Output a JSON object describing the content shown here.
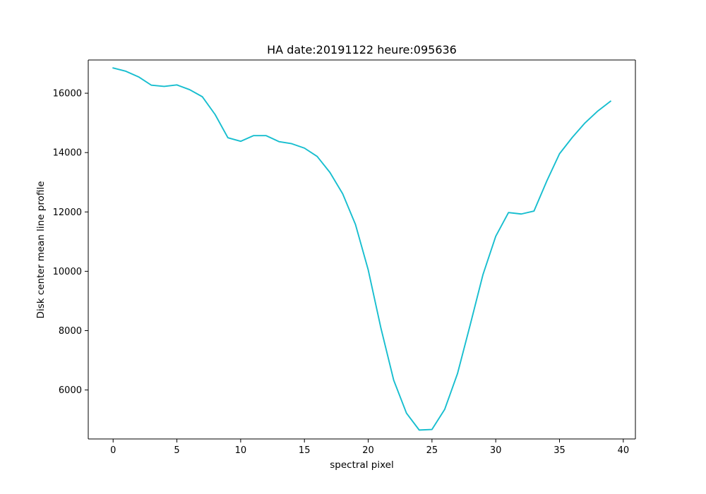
{
  "chart_data": {
    "type": "line",
    "title": "HA date:20191122 heure:095636",
    "xlabel": "spectral pixel",
    "ylabel": "Disk center mean line profile",
    "xlim": [
      -1.95,
      40.95
    ],
    "ylim": [
      4350,
      17120
    ],
    "xticks": [
      0,
      5,
      10,
      15,
      20,
      25,
      30,
      35,
      40
    ],
    "yticks": [
      6000,
      8000,
      10000,
      12000,
      14000,
      16000
    ],
    "xtick_labels": [
      "0",
      "5",
      "10",
      "15",
      "20",
      "25",
      "30",
      "35",
      "40"
    ],
    "ytick_labels": [
      "6000",
      "8000",
      "10000",
      "12000",
      "14000",
      "16000"
    ],
    "grid": false,
    "series": [
      {
        "color": "#17becf",
        "x": [
          0,
          1,
          2,
          3,
          4,
          5,
          6,
          7,
          8,
          9,
          10,
          11,
          12,
          13,
          14,
          15,
          16,
          17,
          18,
          19,
          20,
          21,
          22,
          23,
          24,
          25,
          26,
          27,
          28,
          29,
          30,
          31,
          32,
          33,
          34,
          35,
          36,
          37,
          38,
          39
        ],
        "values": [
          16850,
          16740,
          16550,
          16270,
          16230,
          16280,
          16120,
          15880,
          15280,
          14500,
          14380,
          14570,
          14570,
          14370,
          14300,
          14150,
          13870,
          13330,
          12610,
          11580,
          10050,
          8080,
          6330,
          5220,
          4650,
          4670,
          5350,
          6550,
          8200,
          9890,
          11180,
          11980,
          11930,
          12030,
          13040,
          13960,
          14510,
          15000,
          15400,
          15730
        ]
      }
    ]
  }
}
